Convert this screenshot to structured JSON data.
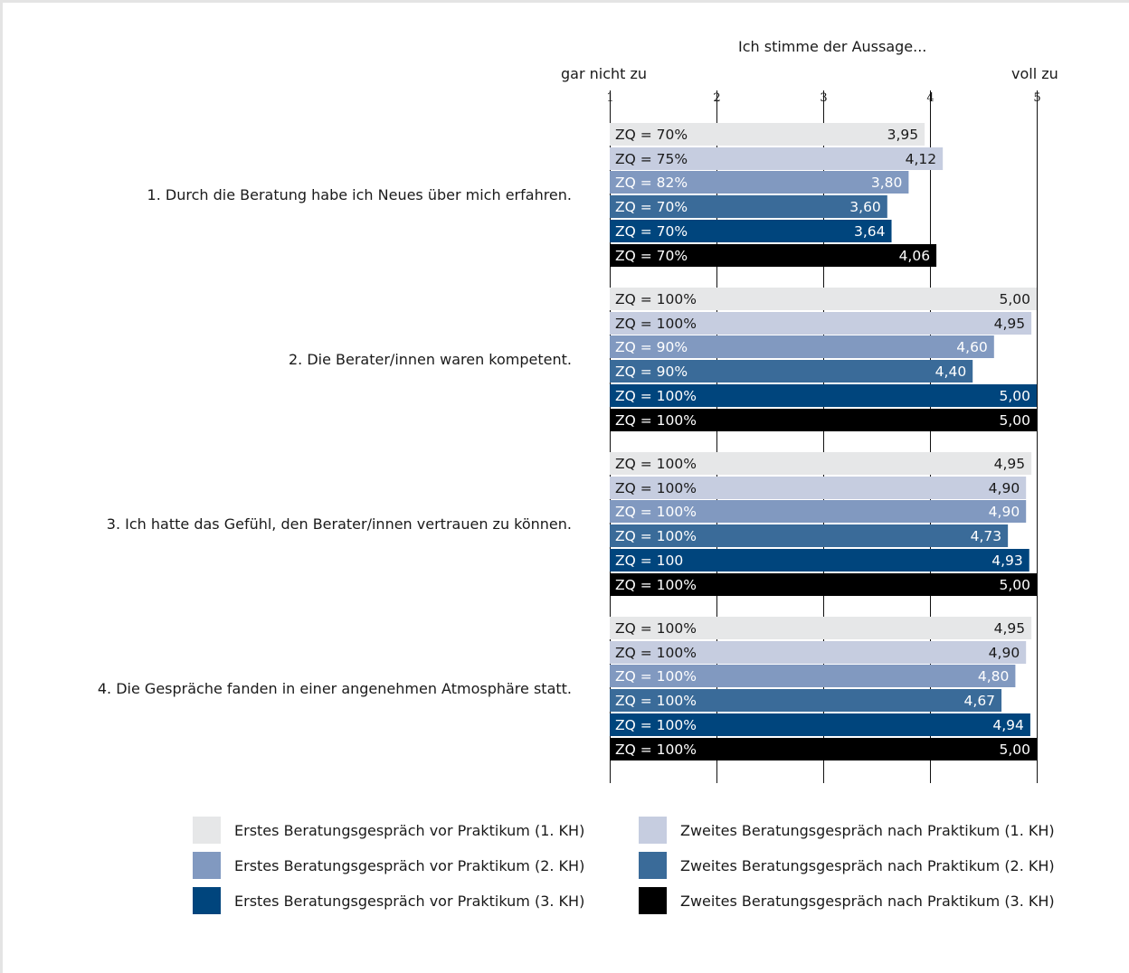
{
  "header": {
    "scale_title": "Ich stimme der Aussage...",
    "low_label": "gar nicht zu",
    "high_label": "voll zu"
  },
  "colors": {
    "s1": "#e6e7e8",
    "s2": "#c6cde0",
    "s3": "#8199c0",
    "s4": "#3a6b99",
    "s5": "#00457d",
    "s6": "#000000"
  },
  "chart_data": {
    "type": "bar",
    "orientation": "horizontal",
    "xlim": [
      1,
      5
    ],
    "xticks": [
      "1",
      "2",
      "3",
      "4",
      "5"
    ],
    "categories": [
      "1. Durch die Beratung habe ich Neues über mich erfahren.",
      "2. Die Berater/innen waren kompetent.",
      "3. Ich hatte das Gefühl, den Berater/innen vertrauen zu können.",
      "4. Die Gespräche fanden in einer angenehmen Atmosphäre statt."
    ],
    "series": [
      {
        "name": "Erstes Beratungsgespräch vor Praktikum (1. KH)",
        "color": "#e6e7e8",
        "text_color": "#1a1a1a",
        "values": [
          3.95,
          5.0,
          4.95,
          4.95
        ],
        "value_labels": [
          "3,95",
          "5,00",
          "4,95",
          "4,95"
        ],
        "zq_labels": [
          "ZQ = 70%",
          "ZQ = 100%",
          "ZQ = 100%",
          "ZQ = 100%"
        ]
      },
      {
        "name": "Zweites Beratungsgespräch nach Praktikum (1. KH)",
        "color": "#c6cde0",
        "text_color": "#1a1a1a",
        "values": [
          4.12,
          4.95,
          4.9,
          4.9
        ],
        "value_labels": [
          "4,12",
          "4,95",
          "4,90",
          "4,90"
        ],
        "zq_labels": [
          "ZQ = 75%",
          "ZQ = 100%",
          "ZQ = 100%",
          "ZQ = 100%"
        ]
      },
      {
        "name": "Erstes Beratungsgespräch vor Praktikum (2. KH)",
        "color": "#8199c0",
        "text_color": "#ffffff",
        "values": [
          3.8,
          4.6,
          4.9,
          4.8
        ],
        "value_labels": [
          "3,80",
          "4,60",
          "4,90",
          "4,80"
        ],
        "zq_labels": [
          "ZQ = 82%",
          "ZQ = 90%",
          "ZQ = 100%",
          "ZQ = 100%"
        ]
      },
      {
        "name": "Zweites Beratungsgespräch nach Praktikum (2. KH)",
        "color": "#3a6b99",
        "text_color": "#ffffff",
        "values": [
          3.6,
          4.4,
          4.73,
          4.67
        ],
        "value_labels": [
          "3,60",
          "4,40",
          "4,73",
          "4,67"
        ],
        "zq_labels": [
          "ZQ = 70%",
          "ZQ = 90%",
          "ZQ = 100%",
          "ZQ = 100%"
        ]
      },
      {
        "name": "Erstes Beratungsgespräch vor Praktikum (3. KH)",
        "color": "#00457d",
        "text_color": "#ffffff",
        "values": [
          3.64,
          5.0,
          4.93,
          4.94
        ],
        "value_labels": [
          "3,64",
          "5,00",
          "4,93",
          "4,94"
        ],
        "zq_labels": [
          "ZQ = 70%",
          "ZQ = 100%",
          "ZQ = 100",
          "ZQ = 100%"
        ]
      },
      {
        "name": "Zweites Beratungsgespräch nach Praktikum (3. KH)",
        "color": "#000000",
        "text_color": "#ffffff",
        "values": [
          4.06,
          5.0,
          5.0,
          5.0
        ],
        "value_labels": [
          "4,06",
          "5,00",
          "5,00",
          "5,00"
        ],
        "zq_labels": [
          "ZQ = 70%",
          "ZQ = 100%",
          "ZQ = 100%",
          "ZQ = 100%"
        ]
      }
    ],
    "legend_position": "bottom"
  }
}
